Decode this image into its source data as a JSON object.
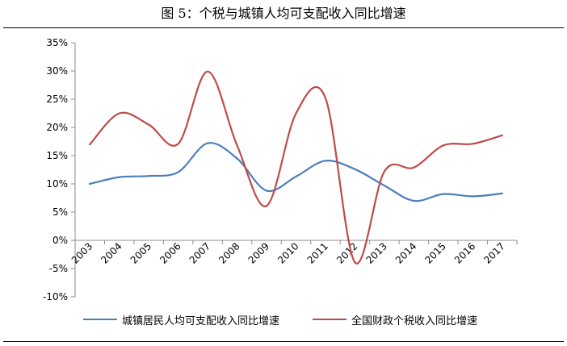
{
  "figure": {
    "title": "图 5：个税与城镇人均可支配收入同比增速"
  },
  "chart_data": {
    "type": "line",
    "title": "图 5：个税与城镇人均可支配收入同比增速",
    "xlabel": "",
    "ylabel": "",
    "categories": [
      "2003",
      "2004",
      "2005",
      "2006",
      "2007",
      "2008",
      "2009",
      "2010",
      "2011",
      "2012",
      "2013",
      "2014",
      "2015",
      "2016",
      "2017"
    ],
    "y_ticks": [
      "35%",
      "30%",
      "25%",
      "20%",
      "15%",
      "10%",
      "5%",
      "0%",
      "-5%",
      "-10%"
    ],
    "ylim": [
      -10,
      35
    ],
    "grid": false,
    "legend_position": "bottom",
    "series": [
      {
        "name": "城镇居民人均可支配收入同比增速",
        "color": "#4a7ebb",
        "values": [
          10.0,
          11.2,
          11.4,
          12.1,
          17.2,
          14.5,
          8.8,
          11.3,
          14.1,
          12.6,
          9.7,
          7.0,
          8.2,
          7.8,
          8.3
        ]
      },
      {
        "name": "全国财政个税收入同比增速",
        "color": "#be4b48",
        "values": [
          17.0,
          22.5,
          20.5,
          17.1,
          29.9,
          16.8,
          6.1,
          22.5,
          25.2,
          -3.9,
          12.2,
          12.9,
          16.8,
          17.1,
          18.6
        ]
      }
    ]
  }
}
